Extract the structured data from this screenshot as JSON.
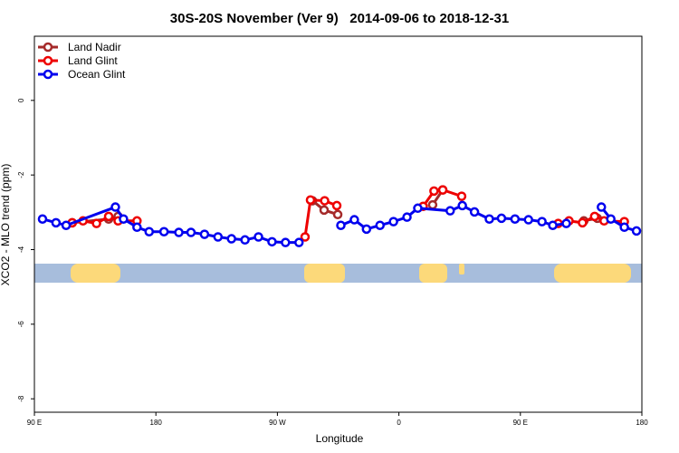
{
  "chart_data": {
    "type": "line",
    "title": "30S-20S November (Ver 9)   2014-09-06 to 2018-12-31",
    "x_label": "Longitude",
    "y_label": "XCO2 - MLO trend (ppm)",
    "xlim": [
      90,
      540
    ],
    "ylim": [
      -8.36,
      1.72
    ],
    "xticks": [
      {
        "value": 90,
        "label": "90 E"
      },
      180,
      {
        "value": 270,
        "label": "90 W"
      },
      {
        "value": 360,
        "label": "0"
      },
      {
        "value": 450,
        "label": "90 E"
      },
      {
        "value": 540,
        "label": "180"
      }
    ],
    "yticks": [
      0,
      -2,
      -4,
      -6,
      -8
    ],
    "legend": "top-left",
    "series": [
      {
        "name": "Land Nadir",
        "color": "#a52a2a",
        "x": [
          118,
          145,
          152,
          null,
          296,
          304.6,
          314.7,
          null,
          385,
          392.5,
          null,
          497,
          507
        ],
        "values": [
          -3.28,
          -3.18,
          -3.11,
          null,
          -2.69,
          -2.94,
          -3.06,
          null,
          -2.8,
          -2.4,
          null,
          -3.23,
          -3.16
        ]
      },
      {
        "name": "Land Glint",
        "color": "#ee0000",
        "x": [
          118,
          126,
          136,
          145,
          152,
          166,
          null,
          290.5,
          294.5,
          305,
          314,
          null,
          378,
          386,
          392.5,
          406.5,
          null,
          478,
          486,
          496,
          505,
          512,
          527
        ],
        "values": [
          -3.28,
          -3.23,
          -3.3,
          -3.11,
          -3.23,
          -3.23,
          null,
          -3.66,
          -2.67,
          -2.69,
          -2.82,
          null,
          -2.84,
          -2.43,
          -2.4,
          -2.57,
          null,
          -3.3,
          -3.23,
          -3.28,
          -3.11,
          -3.23,
          -3.25
        ]
      },
      {
        "name": "Ocean Glint",
        "color": "#0000ee",
        "x": [
          96,
          106,
          113.5,
          150,
          156,
          166,
          175,
          186,
          197,
          206,
          216,
          226,
          236,
          246,
          256,
          266,
          276,
          286,
          null,
          317,
          327,
          336,
          346,
          356,
          366,
          374,
          398,
          407,
          416,
          427,
          436,
          446,
          456,
          466,
          474,
          484,
          null,
          510,
          517,
          527,
          536
        ],
        "values": [
          -3.18,
          -3.28,
          -3.35,
          -2.86,
          -3.18,
          -3.4,
          -3.52,
          -3.52,
          -3.54,
          -3.54,
          -3.59,
          -3.66,
          -3.71,
          -3.74,
          -3.66,
          -3.79,
          -3.81,
          -3.81,
          null,
          -3.35,
          -3.2,
          -3.45,
          -3.35,
          -3.25,
          -3.13,
          -2.89,
          -2.96,
          -2.82,
          -2.99,
          -3.18,
          -3.16,
          -3.18,
          -3.2,
          -3.25,
          -3.35,
          -3.3,
          null,
          -2.86,
          -3.18,
          -3.4,
          -3.5
        ]
      }
    ]
  }
}
